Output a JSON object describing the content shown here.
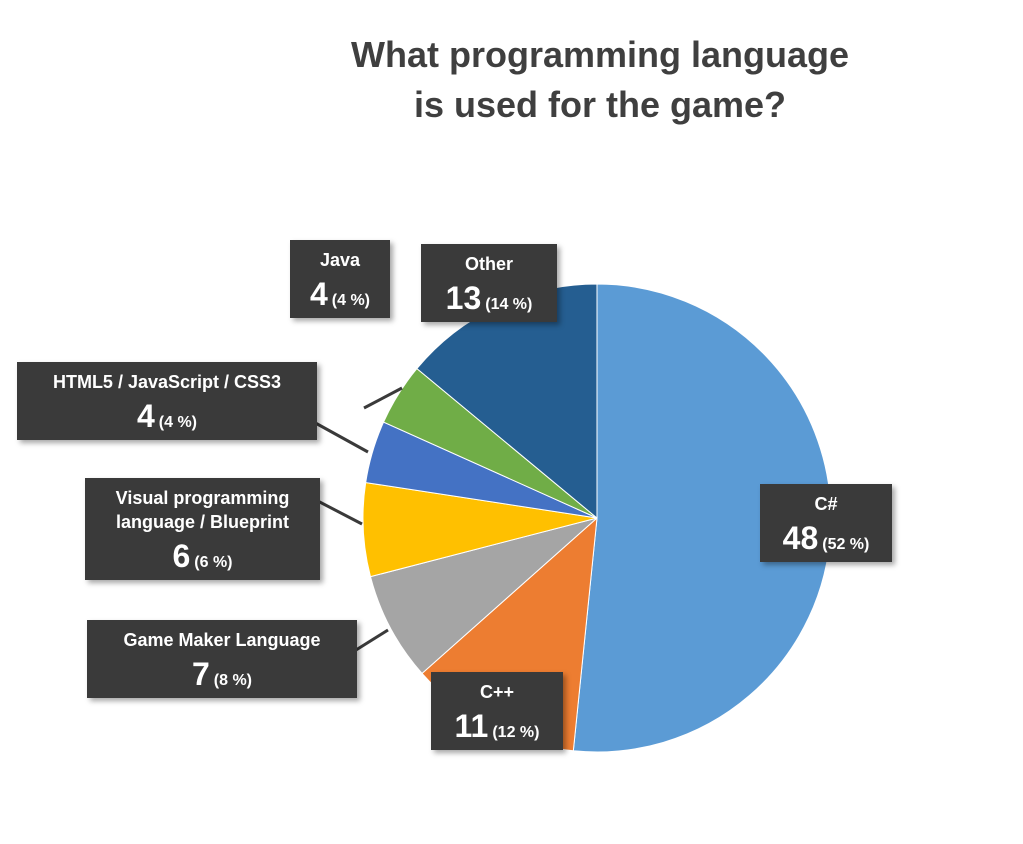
{
  "chart_data": {
    "type": "pie",
    "title_lines": [
      "What programming language",
      "is used for the game?"
    ],
    "slices": [
      {
        "label_lines": [
          "C#"
        ],
        "value": 48,
        "percent": "(52 %)",
        "color": "#5b9bd5"
      },
      {
        "label_lines": [
          "C++"
        ],
        "value": 11,
        "percent": "(12 %)",
        "color": "#ed7d31"
      },
      {
        "label_lines": [
          "Game Maker Language"
        ],
        "value": 7,
        "percent": "(8 %)",
        "color": "#a5a5a5"
      },
      {
        "label_lines": [
          "Visual programming",
          "language / Blueprint"
        ],
        "value": 6,
        "percent": "(6 %)",
        "color": "#ffc000"
      },
      {
        "label_lines": [
          "HTML5 / JavaScript / CSS3"
        ],
        "value": 4,
        "percent": "(4 %)",
        "color": "#4472c4"
      },
      {
        "label_lines": [
          "Java"
        ],
        "value": 4,
        "percent": "(4 %)",
        "color": "#70ad47"
      },
      {
        "label_lines": [
          "Other"
        ],
        "value": 13,
        "percent": "(14 %)",
        "color": "#255e91"
      }
    ]
  }
}
